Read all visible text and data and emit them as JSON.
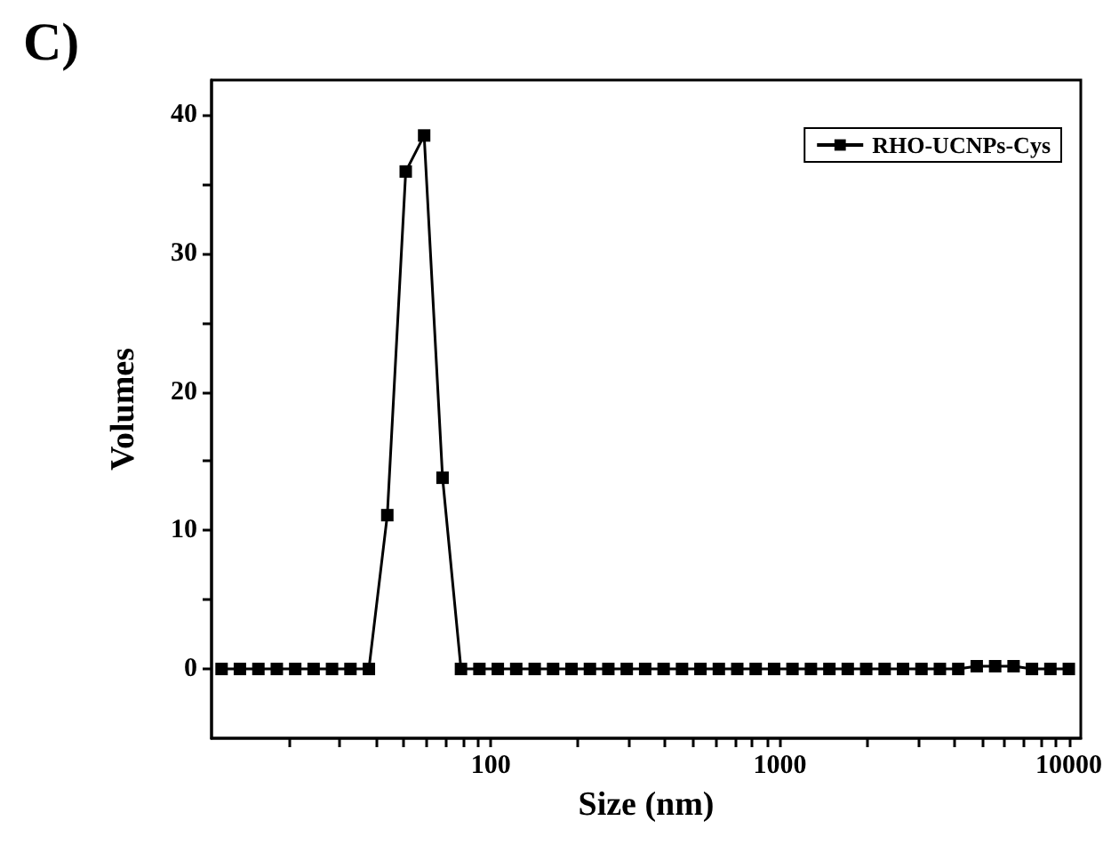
{
  "chart_data": {
    "type": "line",
    "title": "C)",
    "xlabel": "Size (nm)",
    "ylabel": "Volumes",
    "log": "x",
    "legend": "top right",
    "marker": "square",
    "line_style": "solid",
    "grid": false,
    "x": [
      11.7,
      13.54,
      15.69,
      18.17,
      21.04,
      24.36,
      28.21,
      32.67,
      37.84,
      43.82,
      50.75,
      58.77,
      68.06,
      78.82,
      91.28,
      105.7,
      122.4,
      141.8,
      164.2,
      190.1,
      220.2,
      255.0,
      295.3,
      342.0,
      396.1,
      458.7,
      531.2,
      615.1,
      712.4,
      825.0,
      955.4,
      1106,
      1281,
      1484,
      1718,
      1990,
      2305,
      2669,
      3091,
      3580,
      4145,
      4801,
      5560,
      6439,
      7456,
      8635,
      10000
    ],
    "series": [
      {
        "name": "RHO-UCNPs-Cys",
        "color": "#000000",
        "values": [
          0,
          0,
          0,
          0,
          0,
          0,
          0,
          0,
          0,
          11.1,
          35.9,
          38.5,
          13.8,
          0,
          0,
          0,
          0,
          0,
          0,
          0,
          0,
          0,
          0,
          0,
          0,
          0,
          0,
          0,
          0,
          0,
          0,
          0,
          0,
          0,
          0,
          0,
          0,
          0,
          0,
          0,
          0,
          0.2,
          0.2,
          0.2,
          0,
          0,
          0
        ]
      }
    ],
    "xlim": [
      10.8,
      11000
    ],
    "xticks": [
      {
        "value": 20,
        "label": null
      },
      {
        "value": 30,
        "label": null
      },
      {
        "value": 40,
        "label": null
      },
      {
        "value": 50,
        "label": null
      },
      {
        "value": 60,
        "label": null
      },
      {
        "value": 70,
        "label": null
      },
      {
        "value": 80,
        "label": null
      },
      {
        "value": 90,
        "label": null
      },
      100,
      {
        "value": 200,
        "label": null
      },
      {
        "value": 300,
        "label": null
      },
      {
        "value": 400,
        "label": null
      },
      {
        "value": 500,
        "label": null
      },
      {
        "value": 600,
        "label": null
      },
      {
        "value": 700,
        "label": null
      },
      {
        "value": 800,
        "label": null
      },
      {
        "value": 900,
        "label": null
      },
      1000,
      {
        "value": 2000,
        "label": null
      },
      {
        "value": 3000,
        "label": null
      },
      {
        "value": 4000,
        "label": null
      },
      {
        "value": 5000,
        "label": null
      },
      {
        "value": 6000,
        "label": null
      },
      {
        "value": 7000,
        "label": null
      },
      {
        "value": 8000,
        "label": null
      },
      {
        "value": 9000,
        "label": null
      },
      10000
    ],
    "ylim": [
      -5,
      42.5
    ],
    "yticks": [
      0,
      {
        "value": 5,
        "label": null
      },
      10,
      {
        "value": 15,
        "label": null
      },
      20,
      {
        "value": 25,
        "label": null
      },
      30,
      {
        "value": 35,
        "label": null
      },
      40
    ]
  }
}
